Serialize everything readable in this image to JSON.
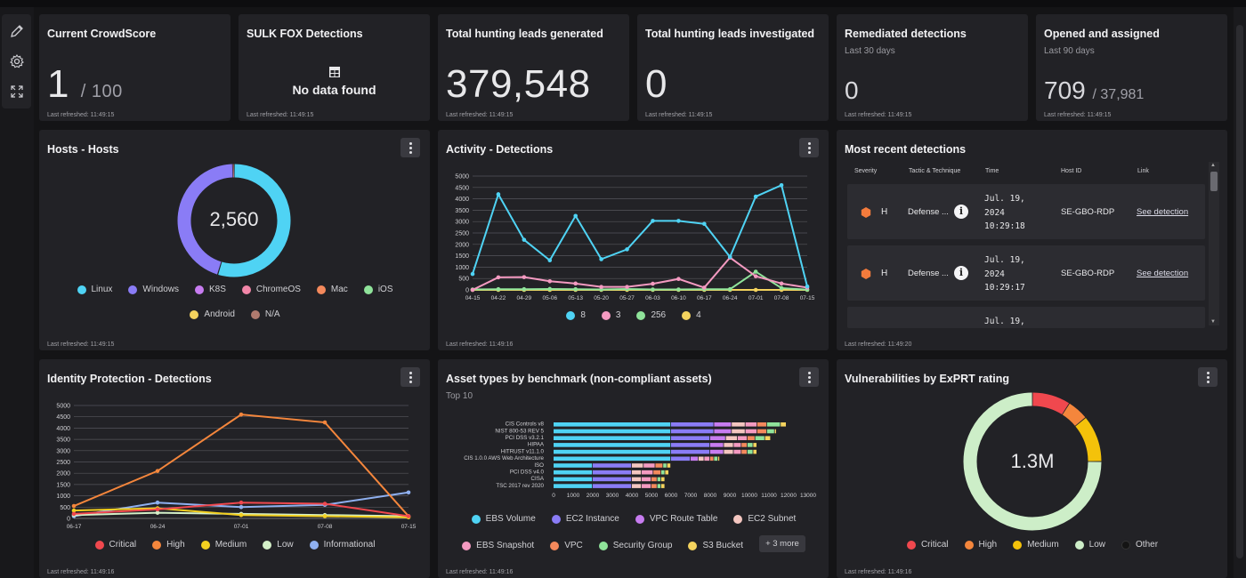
{
  "sidebar": {
    "tools": [
      {
        "name": "edit-icon"
      },
      {
        "name": "gear-icon"
      },
      {
        "name": "expand-icon"
      }
    ]
  },
  "cards": {
    "crowdscore": {
      "title": "Current CrowdScore",
      "value": "1",
      "total": "/ 100",
      "refreshed": "Last refreshed: 11:49:15"
    },
    "sulkfox": {
      "title": "SULK FOX Detections",
      "message": "No data found",
      "refreshed": "Last refreshed: 11:49:15"
    },
    "leads_generated": {
      "title": "Total hunting leads generated",
      "value": "379,548",
      "refreshed": "Last refreshed: 11:49:15"
    },
    "leads_investigated": {
      "title": "Total hunting leads investigated",
      "value": "0",
      "refreshed": "Last refreshed: 11:49:15"
    },
    "remediated": {
      "title": "Remediated detections",
      "subtitle": "Last 30 days",
      "value": "0",
      "refreshed": "Last refreshed: 11:49:15"
    },
    "opened": {
      "title": "Opened and assigned",
      "subtitle": "Last 90 days",
      "value": "709",
      "total": "/ 37,981",
      "refreshed": "Last refreshed: 11:49:15"
    }
  },
  "hosts": {
    "title": "Hosts - Hosts",
    "center": "2,560",
    "refreshed": "Last refreshed: 11:49:15",
    "legend": [
      {
        "label": "Linux",
        "color": "#4fd3f4"
      },
      {
        "label": "Windows",
        "color": "#8a7cf6"
      },
      {
        "label": "K8S",
        "color": "#c77cf0"
      },
      {
        "label": "ChromeOS",
        "color": "#f286a8"
      },
      {
        "label": "Mac",
        "color": "#f4895c"
      },
      {
        "label": "iOS",
        "color": "#8fe39a"
      },
      {
        "label": "Android",
        "color": "#f4d35e"
      },
      {
        "label": "N/A",
        "color": "#b07a6e"
      }
    ]
  },
  "activity": {
    "title": "Activity - Detections",
    "refreshed": "Last refreshed: 11:49:16",
    "legend": [
      {
        "label": "8",
        "color": "#4fd3f4"
      },
      {
        "label": "3",
        "color": "#f49ac1"
      },
      {
        "label": "256",
        "color": "#8fe39a"
      },
      {
        "label": "4",
        "color": "#f4d35e"
      }
    ]
  },
  "recent": {
    "title": "Most recent detections",
    "refreshed": "Last refreshed: 11:49:20",
    "headers": [
      "Severity",
      "Tactic & Technique",
      "Time",
      "Host ID",
      "Link"
    ],
    "rows": [
      {
        "severity": "H",
        "tactic": "Defense ...",
        "time": "Jul. 19,\n2024\n10:29:18",
        "host": "SE-GBO-RDP",
        "link": "See detection"
      },
      {
        "severity": "H",
        "tactic": "Defense ...",
        "time": "Jul. 19,\n2024\n10:29:17",
        "host": "SE-GBO-RDP",
        "link": "See detection"
      },
      {
        "severity": "",
        "tactic": "",
        "time": "Jul. 19,",
        "host": "",
        "link": ""
      }
    ],
    "severity_color": "#f47b3c"
  },
  "identity": {
    "title": "Identity Protection - Detections",
    "refreshed": "Last refreshed: 11:49:16",
    "legend": [
      {
        "label": "Critical",
        "color": "#f0484e"
      },
      {
        "label": "High",
        "color": "#f4863c"
      },
      {
        "label": "Medium",
        "color": "#f4d020"
      },
      {
        "label": "Low",
        "color": "#d4f0c8"
      },
      {
        "label": "Informational",
        "color": "#8fb0f0"
      }
    ]
  },
  "assets": {
    "title": "Asset types by benchmark (non-compliant assets)",
    "subtitle": "Top 10",
    "refreshed": "Last refreshed: 11:49:16",
    "legend": [
      {
        "label": "EBS Volume",
        "color": "#4fd3f4"
      },
      {
        "label": "EC2 Instance",
        "color": "#8a7cf6"
      },
      {
        "label": "VPC Route Table",
        "color": "#c77cf0"
      },
      {
        "label": "EC2 Subnet",
        "color": "#f4c6c0"
      },
      {
        "label": "EBS Snapshot",
        "color": "#f49ac1"
      },
      {
        "label": "VPC",
        "color": "#f4895c"
      },
      {
        "label": "Security Group",
        "color": "#8fe39a"
      },
      {
        "label": "S3 Bucket",
        "color": "#f4d35e"
      }
    ],
    "more": "+ 3 more"
  },
  "vulns": {
    "title": "Vulnerabilities by ExPRT rating",
    "center": "1.3M",
    "refreshed": "Last refreshed: 11:49:16",
    "legend": [
      {
        "label": "Critical",
        "color": "#f0484e"
      },
      {
        "label": "High",
        "color": "#f4863c"
      },
      {
        "label": "Medium",
        "color": "#f4c20a"
      },
      {
        "label": "Low",
        "color": "#cdeec8"
      },
      {
        "label": "Other",
        "color": "#141414"
      }
    ]
  },
  "chart_data": [
    {
      "type": "pie",
      "title": "Hosts - Hosts",
      "donut": true,
      "categories": [
        "Linux",
        "Windows",
        "K8S",
        "ChromeOS",
        "Mac",
        "iOS",
        "Android",
        "N/A"
      ],
      "values": [
        1400,
        1150,
        5,
        0,
        5,
        0,
        0,
        0
      ]
    },
    {
      "type": "line",
      "title": "Activity - Detections",
      "x": [
        "04-15",
        "04-22",
        "04-29",
        "05-06",
        "05-13",
        "05-20",
        "05-27",
        "06-03",
        "06-10",
        "06-17",
        "06-24",
        "07-01",
        "07-08",
        "07-15"
      ],
      "ylim": [
        0,
        5000
      ],
      "yticks": [
        0,
        500,
        1000,
        1500,
        2000,
        2500,
        3000,
        3500,
        4000,
        4500,
        5000
      ],
      "series": [
        {
          "name": "8",
          "color": "#4fd3f4",
          "values": [
            700,
            4200,
            2200,
            1300,
            3250,
            1350,
            1780,
            3030,
            3030,
            2900,
            1450,
            4100,
            4600,
            150
          ]
        },
        {
          "name": "3",
          "color": "#f49ac1",
          "values": [
            0,
            550,
            560,
            380,
            280,
            130,
            130,
            270,
            480,
            100,
            1420,
            600,
            280,
            100
          ]
        },
        {
          "name": "256",
          "color": "#8fe39a",
          "values": [
            20,
            30,
            30,
            40,
            30,
            20,
            40,
            20,
            20,
            30,
            30,
            800,
            80,
            10
          ]
        },
        {
          "name": "4",
          "color": "#f4d35e",
          "values": [
            0,
            0,
            0,
            0,
            0,
            0,
            0,
            0,
            0,
            0,
            0,
            0,
            0,
            0
          ]
        }
      ],
      "grid": true
    },
    {
      "type": "line",
      "title": "Identity Protection - Detections",
      "x": [
        "06-17",
        "06-24",
        "07-01",
        "07-08",
        "07-15"
      ],
      "ylim": [
        0,
        5000
      ],
      "yticks": [
        0,
        500,
        1000,
        1500,
        2000,
        2500,
        3000,
        3500,
        4000,
        4500,
        5000
      ],
      "series": [
        {
          "name": "Critical",
          "color": "#f0484e",
          "values": [
            200,
            400,
            700,
            650,
            100
          ]
        },
        {
          "name": "High",
          "color": "#f4863c",
          "values": [
            550,
            2100,
            4600,
            4250,
            100
          ]
        },
        {
          "name": "Medium",
          "color": "#f4d020",
          "values": [
            350,
            450,
            150,
            100,
            50
          ]
        },
        {
          "name": "Low",
          "color": "#d4f0c8",
          "values": [
            150,
            250,
            200,
            150,
            100
          ]
        },
        {
          "name": "Informational",
          "color": "#8fb0f0",
          "values": [
            100,
            700,
            500,
            600,
            1150
          ]
        }
      ],
      "grid": true
    },
    {
      "type": "bar",
      "title": "Asset types by benchmark (non-compliant assets)",
      "orientation": "horizontal",
      "stacked": true,
      "categories": [
        "CIS Controls v8",
        "NIST 800-53 REV 5",
        "PCI DSS v3.2.1",
        "HIPAA",
        "HITRUST v11.1.0",
        "CIS 1.0.0 AWS Web Architecture",
        "ISO",
        "PCI DSS v4.0",
        "CISA",
        "TSC 2017 rev 2020"
      ],
      "xlim": [
        0,
        13000
      ],
      "xticks": [
        0,
        1000,
        2000,
        3000,
        4000,
        5000,
        6000,
        7000,
        8000,
        9000,
        10000,
        11000,
        12000,
        13000
      ],
      "series": [
        {
          "name": "EBS Volume",
          "color": "#4fd3f4",
          "values": [
            6000,
            6000,
            6000,
            6000,
            6000,
            6000,
            2000,
            2000,
            2000,
            2000
          ]
        },
        {
          "name": "EC2 Instance",
          "color": "#8a7cf6",
          "values": [
            2200,
            2200,
            2000,
            2000,
            2000,
            1000,
            2000,
            2000,
            2000,
            2000
          ]
        },
        {
          "name": "VPC Route Table",
          "color": "#c77cf0",
          "values": [
            900,
            900,
            800,
            700,
            700,
            400,
            0,
            0,
            0,
            0
          ]
        },
        {
          "name": "EC2 Subnet",
          "color": "#f4c6c0",
          "values": [
            700,
            700,
            600,
            500,
            500,
            300,
            600,
            500,
            500,
            500
          ]
        },
        {
          "name": "EBS Snapshot",
          "color": "#f49ac1",
          "values": [
            600,
            600,
            500,
            400,
            400,
            300,
            600,
            600,
            500,
            500
          ]
        },
        {
          "name": "VPC",
          "color": "#f4895c",
          "values": [
            500,
            500,
            400,
            300,
            300,
            200,
            400,
            400,
            300,
            300
          ]
        },
        {
          "name": "Security Group",
          "color": "#8fe39a",
          "values": [
            700,
            400,
            500,
            300,
            300,
            200,
            200,
            200,
            200,
            200
          ]
        },
        {
          "name": "S3 Bucket",
          "color": "#f4d35e",
          "values": [
            300,
            100,
            300,
            200,
            200,
            100,
            200,
            200,
            200,
            200
          ]
        }
      ]
    },
    {
      "type": "pie",
      "title": "Vulnerabilities by ExPRT rating",
      "donut": true,
      "categories": [
        "Critical",
        "High",
        "Medium",
        "Low",
        "Other"
      ],
      "values": [
        9,
        5,
        11,
        75,
        0
      ]
    }
  ]
}
